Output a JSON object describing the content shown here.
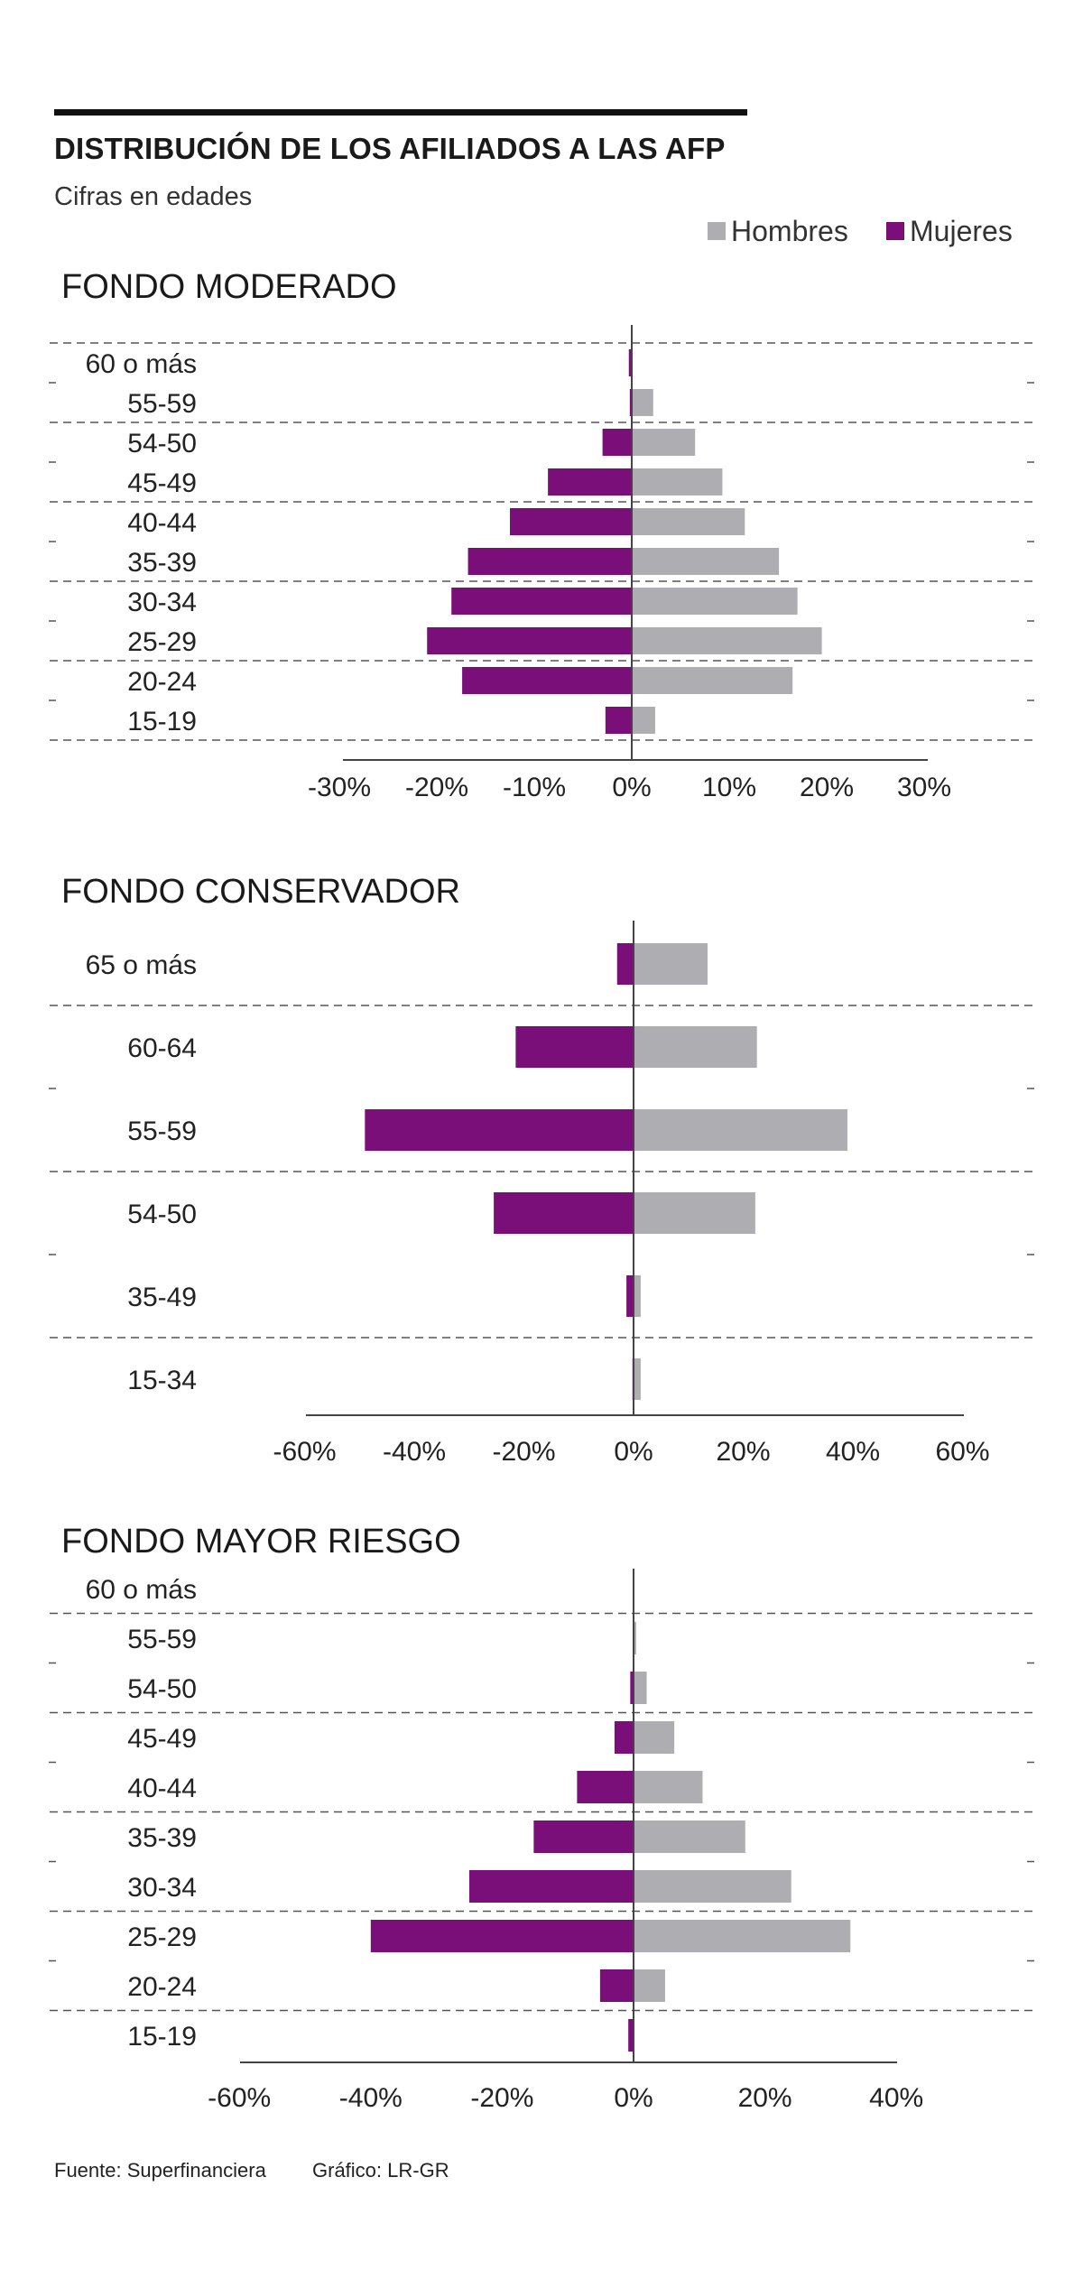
{
  "header": {
    "title": "DISTRIBUCIÓN DE LOS AFILIADOS A LAS AFP",
    "subtitle": "Cifras en edades"
  },
  "legend": {
    "men_label": "Hombres",
    "women_label": "Mujeres",
    "men_color": "#aeadb2",
    "women_color": "#7b0f7a"
  },
  "chart_data": [
    {
      "type": "bar",
      "orientation": "horizontal-diverging",
      "title": "FONDO MODERADO",
      "categories": [
        "60 o más",
        "55-59",
        "54-50",
        "45-49",
        "40-44",
        "35-39",
        "30-34",
        "25-29",
        "20-24",
        "15-19"
      ],
      "series": [
        {
          "name": "Hombres",
          "values": [
            0,
            2.2,
            6.5,
            9.3,
            11.6,
            15.1,
            17.0,
            19.5,
            16.5,
            2.4
          ]
        },
        {
          "name": "Mujeres",
          "values": [
            -0.3,
            -0.2,
            -3.0,
            -8.6,
            -12.5,
            -16.8,
            -18.5,
            -21.0,
            -17.4,
            -2.7
          ]
        }
      ],
      "xlim": [
        -30,
        30
      ],
      "xticks": [
        "-30%",
        "-20%",
        "-10%",
        "0%",
        "10%",
        "20%",
        "30%"
      ],
      "grid": true
    },
    {
      "type": "bar",
      "orientation": "horizontal-diverging",
      "title": "FONDO CONSERVADOR",
      "categories": [
        "65 o más",
        "60-64",
        "55-59",
        "54-50",
        "35-49",
        "15-34"
      ],
      "series": [
        {
          "name": "Hombres",
          "values": [
            13.5,
            22.5,
            39.0,
            22.2,
            1.3,
            1.3
          ]
        },
        {
          "name": "Mujeres",
          "values": [
            -3.0,
            -21.5,
            -49.0,
            -25.5,
            -1.3,
            -0.2
          ]
        }
      ],
      "xlim": [
        -60,
        60
      ],
      "xticks": [
        "-60%",
        "-40%",
        "-20%",
        "0%",
        "20%",
        "40%",
        "60%"
      ],
      "grid": true
    },
    {
      "type": "bar",
      "orientation": "horizontal-diverging",
      "title": "FONDO MAYOR RIESGO",
      "categories": [
        "60 o más",
        "55-59",
        "54-50",
        "45-49",
        "40-44",
        "35-39",
        "30-34",
        "25-29",
        "20-24",
        "15-19"
      ],
      "series": [
        {
          "name": "Hombres",
          "values": [
            0,
            0.4,
            2.0,
            6.2,
            10.5,
            17.0,
            24.0,
            33.0,
            4.8,
            0
          ]
        },
        {
          "name": "Mujeres",
          "values": [
            0,
            0,
            -0.5,
            -2.9,
            -8.6,
            -15.2,
            -25.0,
            -40.0,
            -5.1,
            -0.8
          ]
        }
      ],
      "xlim": [
        -60,
        40
      ],
      "xticks": [
        "-60%",
        "-40%",
        "-20%",
        "0%",
        "20%",
        "40%"
      ],
      "grid": true
    }
  ],
  "footer": {
    "source": "Fuente: Superfinanciera",
    "credit": "Gráfico: LR-GR"
  }
}
